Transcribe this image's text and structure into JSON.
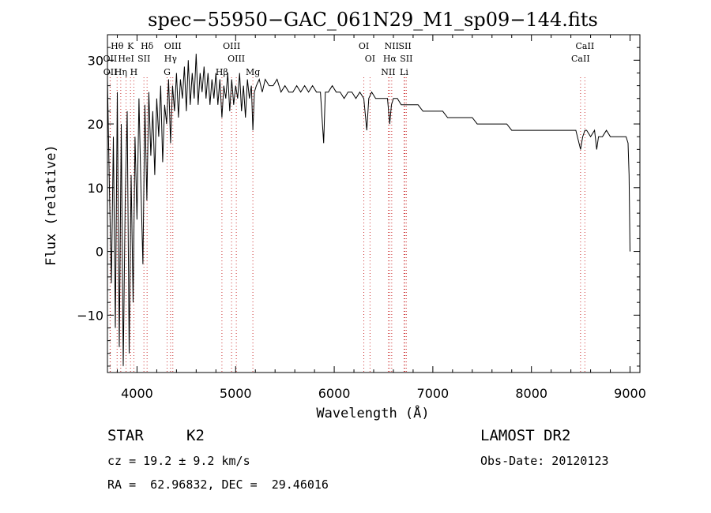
{
  "chart_data": {
    "type": "line",
    "title": "spec−55950−GAC_061N29_M1_sp09−144.fits",
    "xlabel": "Wavelength (Å)",
    "ylabel": "Flux (relative)",
    "xlim": [
      3700,
      9100
    ],
    "ylim": [
      -19,
      34
    ],
    "xticks": [
      4000,
      5000,
      6000,
      7000,
      8000,
      9000
    ],
    "yticks": [
      -10,
      0,
      10,
      20,
      30
    ],
    "grid": false,
    "series": [
      {
        "x": [
          3700,
          3720,
          3740,
          3760,
          3780,
          3800,
          3820,
          3840,
          3860,
          3880,
          3900,
          3920,
          3940,
          3960,
          3980,
          4000,
          4020,
          4040,
          4060,
          4080,
          4100,
          4120,
          4140,
          4160,
          4180,
          4200,
          4220,
          4240,
          4260,
          4280,
          4300,
          4320,
          4340,
          4360,
          4380,
          4400,
          4420,
          4440,
          4460,
          4480,
          4500,
          4520,
          4540,
          4560,
          4580,
          4600,
          4620,
          4640,
          4660,
          4680,
          4700,
          4720,
          4740,
          4760,
          4780,
          4800,
          4820,
          4840,
          4861,
          4880,
          4900,
          4920,
          4940,
          4960,
          4980,
          5000,
          5020,
          5040,
          5060,
          5080,
          5100,
          5120,
          5140,
          5160,
          5175,
          5190,
          5210,
          5240,
          5270,
          5300,
          5340,
          5380,
          5420,
          5460,
          5500,
          5540,
          5580,
          5620,
          5660,
          5700,
          5740,
          5780,
          5820,
          5860,
          5893,
          5910,
          5940,
          5980,
          6020,
          6060,
          6100,
          6140,
          6180,
          6220,
          6260,
          6300,
          6330,
          6350,
          6380,
          6420,
          6460,
          6500,
          6540,
          6563,
          6580,
          6600,
          6640,
          6680,
          6720,
          6760,
          6800,
          6850,
          6900,
          6950,
          7000,
          7050,
          7100,
          7150,
          7200,
          7250,
          7300,
          7350,
          7400,
          7450,
          7500,
          7550,
          7600,
          7650,
          7700,
          7750,
          7800,
          7850,
          7900,
          7950,
          8000,
          8050,
          8100,
          8150,
          8200,
          8250,
          8300,
          8350,
          8400,
          8450,
          8498,
          8520,
          8542,
          8560,
          8600,
          8640,
          8662,
          8680,
          8720,
          8760,
          8800,
          8840,
          8880,
          8920,
          8960,
          8980,
          8990,
          9000
        ],
        "y": [
          27,
          10,
          -5,
          18,
          -12,
          25,
          -15,
          20,
          -18,
          8,
          22,
          -16,
          12,
          -8,
          18,
          5,
          24,
          10,
          -2,
          23,
          8,
          25,
          15,
          22,
          12,
          24,
          18,
          26,
          14,
          23,
          20,
          27,
          17,
          26,
          22,
          28,
          21,
          27,
          24,
          29,
          22,
          30,
          23,
          28,
          24,
          31,
          23,
          28,
          25,
          29,
          24,
          28,
          23,
          27,
          24,
          28,
          23,
          27,
          21,
          26,
          24,
          28,
          22,
          27,
          23,
          26,
          24,
          28,
          22,
          26,
          21,
          27,
          24,
          26,
          19,
          25,
          26,
          27,
          25,
          27,
          26,
          26,
          27,
          25,
          26,
          25,
          25,
          26,
          25,
          26,
          25,
          26,
          25,
          25,
          17,
          25,
          25,
          26,
          25,
          25,
          24,
          25,
          25,
          24,
          25,
          24,
          19,
          24,
          25,
          24,
          24,
          24,
          24,
          20,
          23,
          24,
          24,
          23,
          23,
          23,
          23,
          23,
          22,
          22,
          22,
          22,
          22,
          21,
          21,
          21,
          21,
          21,
          21,
          20,
          20,
          20,
          20,
          20,
          20,
          20,
          19,
          19,
          19,
          19,
          19,
          19,
          19,
          19,
          19,
          19,
          19,
          19,
          19,
          19,
          16,
          18,
          19,
          19,
          18,
          19,
          16,
          18,
          18,
          19,
          18,
          18,
          18,
          18,
          18,
          17,
          12,
          0
        ]
      }
    ],
    "line_markers": [
      {
        "label": "Hθ",
        "wl": 3798,
        "row": 0
      },
      {
        "label": "K",
        "wl": 3934,
        "row": 0
      },
      {
        "label": "Hδ",
        "wl": 4102,
        "row": 0
      },
      {
        "label": "OIII",
        "wl": 4363,
        "row": 0
      },
      {
        "label": "OIII",
        "wl": 4959,
        "row": 0
      },
      {
        "label": "OI",
        "wl": 6300,
        "row": 0
      },
      {
        "label": "NII",
        "wl": 6583,
        "row": 0
      },
      {
        "label": "SII",
        "wl": 6717,
        "row": 0
      },
      {
        "label": "CaII",
        "wl": 8542,
        "row": 0
      },
      {
        "label": "OII",
        "wl": 3727,
        "row": 1
      },
      {
        "label": "HeI",
        "wl": 3889,
        "row": 1
      },
      {
        "label": "SII",
        "wl": 4070,
        "row": 1
      },
      {
        "label": "Hγ",
        "wl": 4340,
        "row": 1
      },
      {
        "label": "OIII",
        "wl": 5007,
        "row": 1
      },
      {
        "label": "OI",
        "wl": 6363,
        "row": 1
      },
      {
        "label": "Hα",
        "wl": 6563,
        "row": 1
      },
      {
        "label": "SII",
        "wl": 6731,
        "row": 1
      },
      {
        "label": "CaII",
        "wl": 8498,
        "row": 1
      },
      {
        "label": "OII",
        "wl": 3729,
        "row": 2
      },
      {
        "label": "Hη",
        "wl": 3835,
        "row": 2
      },
      {
        "label": "H",
        "wl": 3968,
        "row": 2
      },
      {
        "label": "G",
        "wl": 4305,
        "row": 2
      },
      {
        "label": "Hβ",
        "wl": 4861,
        "row": 2
      },
      {
        "label": "Mg",
        "wl": 5175,
        "row": 2
      },
      {
        "label": "NII",
        "wl": 6548,
        "row": 2
      },
      {
        "label": "Li",
        "wl": 6708,
        "row": 2
      }
    ]
  },
  "info": {
    "class_label": "STAR",
    "subclass": "K2",
    "survey": "LAMOST DR2",
    "cz": "cz = 19.2 ± 9.2 km/s",
    "obsdate": "Obs-Date: 20120123",
    "coords": "RA =  62.96832, DEC =  29.46016"
  }
}
